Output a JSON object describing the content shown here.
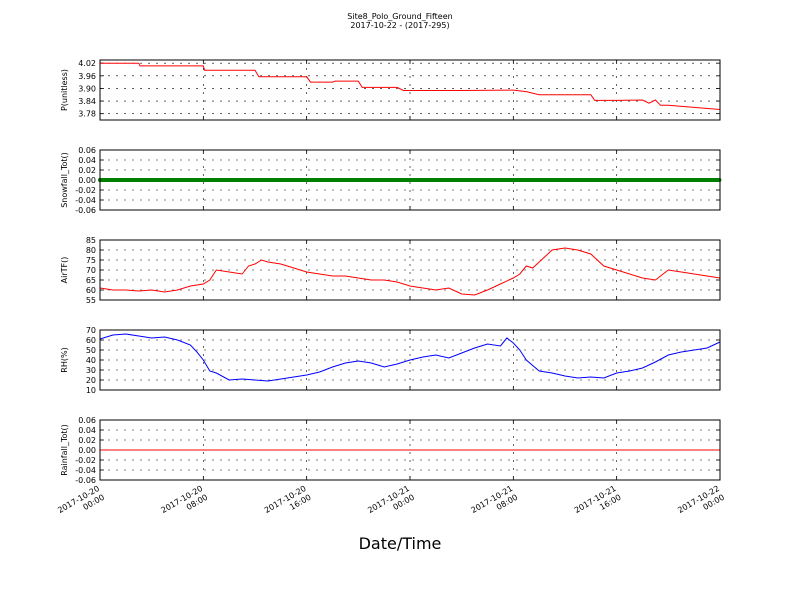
{
  "header": {
    "title": "Site8_Polo_Ground_Fifteen",
    "subtitle": "2017-10-22 - (2017-295)"
  },
  "chart_data": {
    "type": "line",
    "xlabel": "Date/Time",
    "x_ticks": [
      "2017-10-20 00:00",
      "2017-10-20 08:00",
      "2017-10-20 16:00",
      "2017-10-21 00:00",
      "2017-10-21 08:00",
      "2017-10-21 16:00",
      "2017-10-22 00:00"
    ],
    "x_hours": [
      0,
      8,
      16,
      24,
      32,
      40,
      48
    ],
    "grid": true,
    "panels": [
      {
        "ylabel": "P(unitless)",
        "ylim": [
          3.75,
          4.035
        ],
        "yticks": [
          "4.02",
          "3.96",
          "3.90",
          "3.84",
          "3.78"
        ],
        "ytick_values": [
          4.02,
          3.96,
          3.9,
          3.84,
          3.78
        ],
        "color": "#ff0000",
        "x": [
          0,
          3,
          3.1,
          8,
          8.1,
          12,
          12.3,
          16,
          16.3,
          18,
          18.2,
          20,
          20.3,
          23,
          23.5,
          26,
          28,
          32,
          33,
          34,
          38,
          38.3,
          40,
          42,
          42.5,
          43,
          43.4,
          44,
          48
        ],
        "values": [
          4.02,
          4.02,
          4.007,
          4.007,
          3.986,
          3.986,
          3.955,
          3.955,
          3.93,
          3.93,
          3.935,
          3.935,
          3.905,
          3.905,
          3.89,
          3.89,
          3.89,
          3.892,
          3.885,
          3.87,
          3.87,
          3.843,
          3.843,
          3.845,
          3.83,
          3.845,
          3.82,
          3.82,
          3.8
        ]
      },
      {
        "ylabel": "Snowfall_Tot()",
        "ylim": [
          -0.06,
          0.06
        ],
        "yticks": [
          "0.06",
          "0.04",
          "0.02",
          "0.00",
          "-0.02",
          "-0.04",
          "-0.06"
        ],
        "ytick_values": [
          0.06,
          0.04,
          0.02,
          0.0,
          -0.02,
          -0.04,
          -0.06
        ],
        "color": "#008000",
        "style": "markers",
        "x": [
          0,
          48
        ],
        "values": [
          0.0,
          0.0
        ]
      },
      {
        "ylabel": "AirTF()",
        "ylim": [
          55,
          85
        ],
        "yticks": [
          "85",
          "80",
          "75",
          "70",
          "65",
          "60",
          "55"
        ],
        "ytick_values": [
          85,
          80,
          75,
          70,
          65,
          60,
          55
        ],
        "color": "#ff0000",
        "x": [
          0,
          1,
          2,
          3,
          4,
          5,
          6,
          7,
          8,
          8.5,
          9,
          10,
          11,
          11.5,
          12,
          12.5,
          13,
          14,
          15,
          16,
          17,
          18,
          19,
          20,
          21,
          22,
          23,
          24,
          25,
          26,
          27,
          28,
          29,
          30,
          31,
          32,
          32.5,
          33,
          33.5,
          34,
          35,
          36,
          37,
          38,
          39,
          40,
          41,
          42,
          43,
          44,
          45,
          46,
          47,
          48
        ],
        "values": [
          61,
          60,
          60,
          59.5,
          60,
          59,
          60,
          62,
          63,
          65,
          70,
          69,
          68,
          72,
          73,
          75,
          74,
          73,
          71,
          69,
          68,
          67,
          67,
          66,
          65,
          65,
          64,
          62,
          61,
          60,
          61,
          58,
          57.5,
          60,
          63,
          66,
          68,
          72,
          71,
          74,
          80,
          81,
          80,
          78,
          72,
          70,
          68,
          66,
          65,
          70,
          69,
          68,
          67,
          66
        ]
      },
      {
        "ylabel": "RH(%)",
        "ylim": [
          10,
          70
        ],
        "yticks": [
          "70",
          "60",
          "50",
          "40",
          "30",
          "20",
          "10"
        ],
        "ytick_values": [
          70,
          60,
          50,
          40,
          30,
          20,
          10
        ],
        "color": "#0000ff",
        "x": [
          0,
          1,
          2,
          3,
          4,
          5,
          6,
          7,
          7.5,
          8,
          8.5,
          9,
          10,
          11,
          12,
          13,
          14,
          15,
          16,
          17,
          18,
          19,
          20,
          21,
          22,
          23,
          24,
          25,
          26,
          27,
          28,
          29,
          30,
          31,
          31.5,
          32,
          32.5,
          33,
          34,
          35,
          36,
          37,
          38,
          39,
          40,
          41,
          42,
          43,
          44,
          45,
          46,
          47,
          48
        ],
        "values": [
          61,
          65,
          66,
          64,
          62,
          63,
          60,
          55,
          48,
          40,
          29,
          27,
          20,
          21,
          20,
          19,
          21,
          23,
          25,
          28,
          33,
          37,
          39,
          37,
          33,
          36,
          40,
          43,
          45,
          42,
          47,
          52,
          56,
          54,
          62,
          57,
          50,
          40,
          29,
          27,
          24,
          22,
          23,
          22,
          27,
          29,
          32,
          38,
          45,
          48,
          50,
          52,
          58
        ]
      },
      {
        "ylabel": "Rainfall_Tot()",
        "ylim": [
          -0.06,
          0.06
        ],
        "yticks": [
          "0.06",
          "0.04",
          "0.02",
          "0.00",
          "-0.02",
          "-0.04",
          "-0.06"
        ],
        "ytick_values": [
          0.06,
          0.04,
          0.02,
          0.0,
          -0.02,
          -0.04,
          -0.06
        ],
        "color": "#ff0000",
        "x": [
          0,
          48
        ],
        "values": [
          0.0,
          0.0
        ]
      }
    ]
  }
}
